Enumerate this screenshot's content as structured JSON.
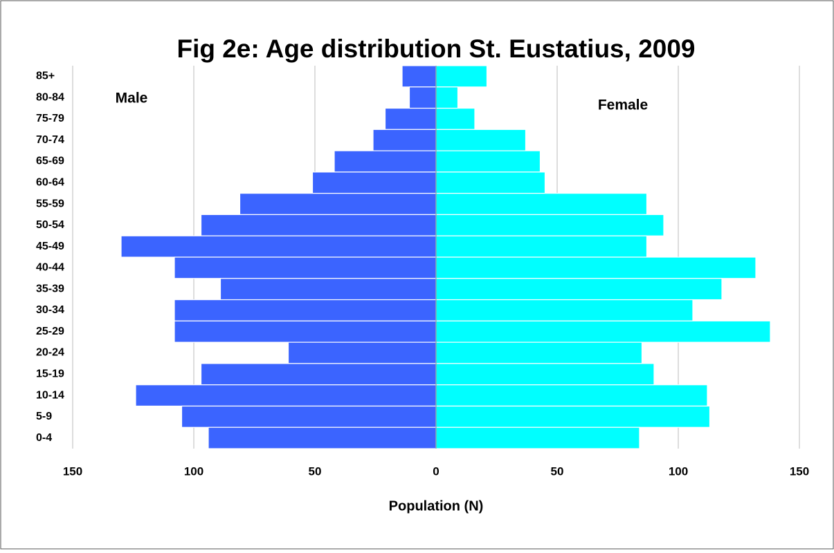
{
  "chart_data": {
    "type": "pyramid",
    "title": "Fig 2e: Age distribution St. Eustatius, 2009",
    "categories": [
      "85+",
      "80-84",
      "75-79",
      "70-74",
      "65-69",
      "60-64",
      "55-59",
      "50-54",
      "45-49",
      "40-44",
      "35-39",
      "30-34",
      "25-29",
      "20-24",
      "15-19",
      "10-14",
      "5-9",
      "0-4"
    ],
    "series": [
      {
        "name": "Male",
        "color": "#3b64ff",
        "values": [
          -14,
          -11,
          -21,
          -26,
          -42,
          -51,
          -81,
          -97,
          -130,
          -108,
          -89,
          -108,
          -108,
          -61,
          -97,
          -124,
          -105,
          -94
        ]
      },
      {
        "name": "Female",
        "color": "#00ffff",
        "values": [
          21,
          9,
          16,
          37,
          43,
          45,
          87,
          94,
          87,
          132,
          118,
          106,
          138,
          85,
          90,
          112,
          113,
          84
        ]
      }
    ],
    "xlabel": "Population (N)",
    "xlim": [
      -150,
      150
    ],
    "xticks": [
      {
        "value": -150,
        "label": "150"
      },
      {
        "value": -100,
        "label": "100"
      },
      {
        "value": -50,
        "label": "50"
      },
      0,
      50,
      100,
      150
    ],
    "grid": true
  }
}
